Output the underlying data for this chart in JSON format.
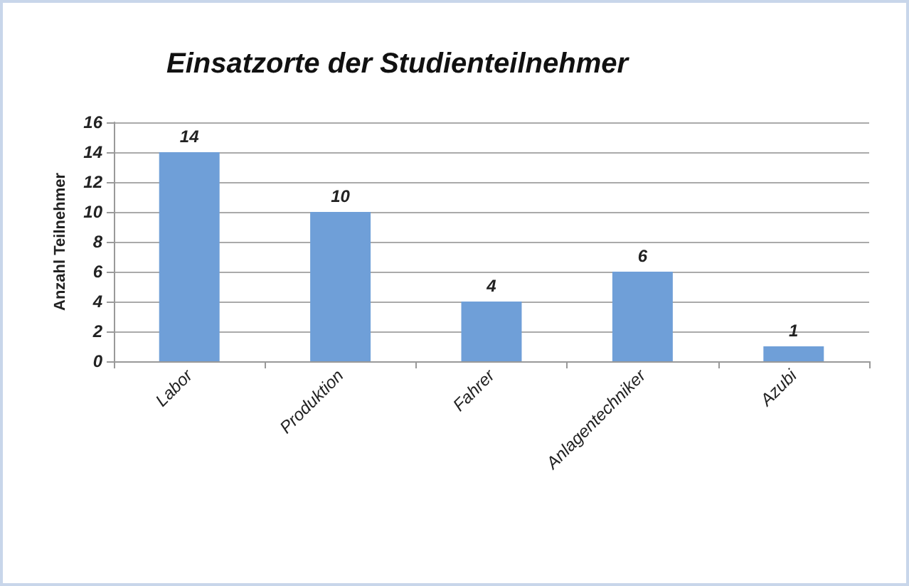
{
  "chart_data": {
    "type": "bar",
    "title": "Einsatzorte der Studienteilnehmer",
    "ylabel": "Anzahl Teilnehmer",
    "categories": [
      "Labor",
      "Produktion",
      "Fahrer",
      "Anlagentechniker",
      "Azubi"
    ],
    "values": [
      14,
      10,
      4,
      6,
      1
    ],
    "color": "#6f9fd8",
    "ylim": [
      0,
      16
    ],
    "yticks": [
      0,
      2,
      4,
      6,
      8,
      10,
      12,
      14,
      16
    ],
    "grid": "y",
    "data_labels": true
  }
}
